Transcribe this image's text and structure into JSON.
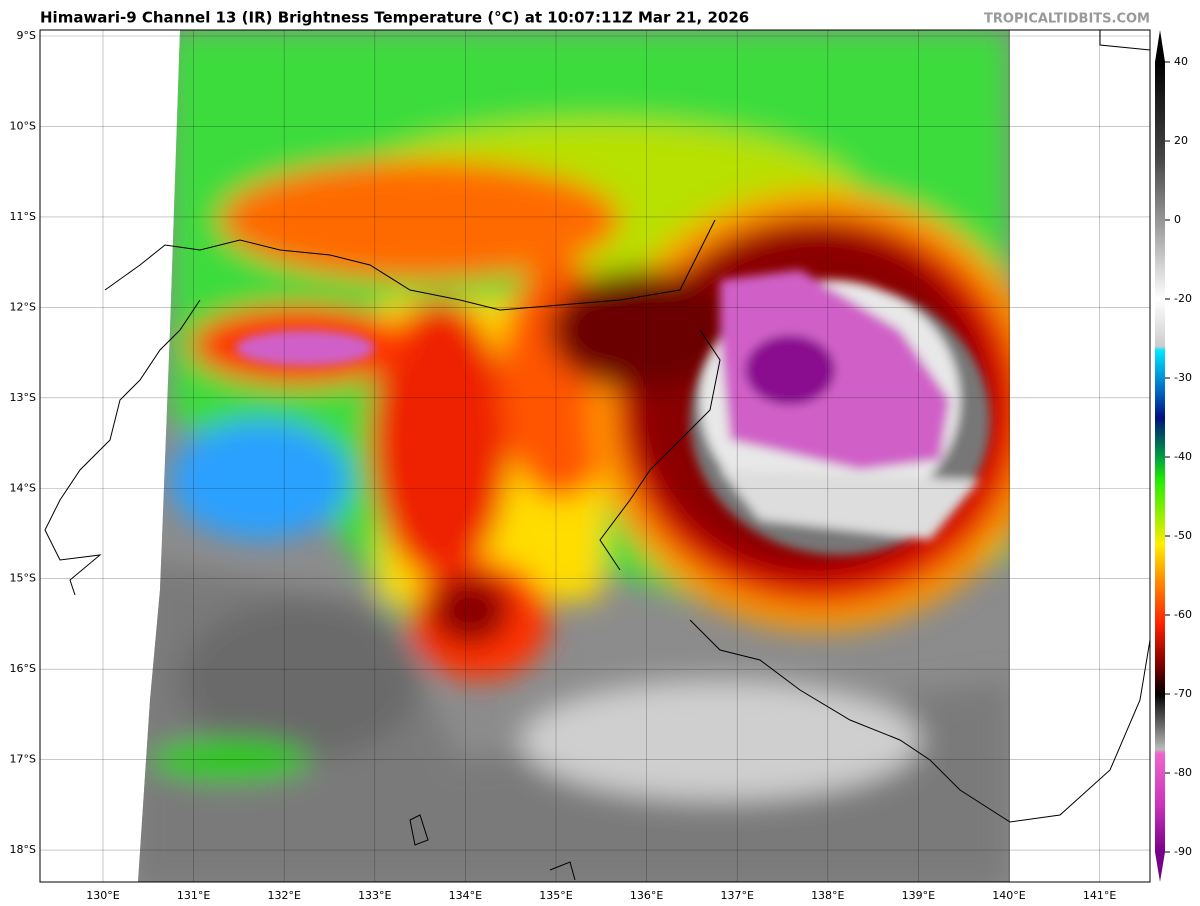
{
  "header": {
    "title": "Himawari-9 Channel 13 (IR) Brightness Temperature (°C) at 10:07:11Z Mar 21, 2026",
    "watermark": "TROPICALTIDBITS.COM"
  },
  "map": {
    "lat_labels": [
      "9°S",
      "10°S",
      "11°S",
      "12°S",
      "13°S",
      "14°S",
      "15°S",
      "16°S",
      "17°S",
      "18°S"
    ],
    "lon_labels": [
      "130°E",
      "131°E",
      "132°E",
      "133°E",
      "134°E",
      "135°E",
      "136°E",
      "137°E",
      "138°E",
      "139°E",
      "140°E",
      "141°E"
    ]
  },
  "colorbar": {
    "ticks": [
      40,
      20,
      0,
      -20,
      -30,
      -40,
      -50,
      -60,
      -70,
      -80,
      -90
    ]
  }
}
